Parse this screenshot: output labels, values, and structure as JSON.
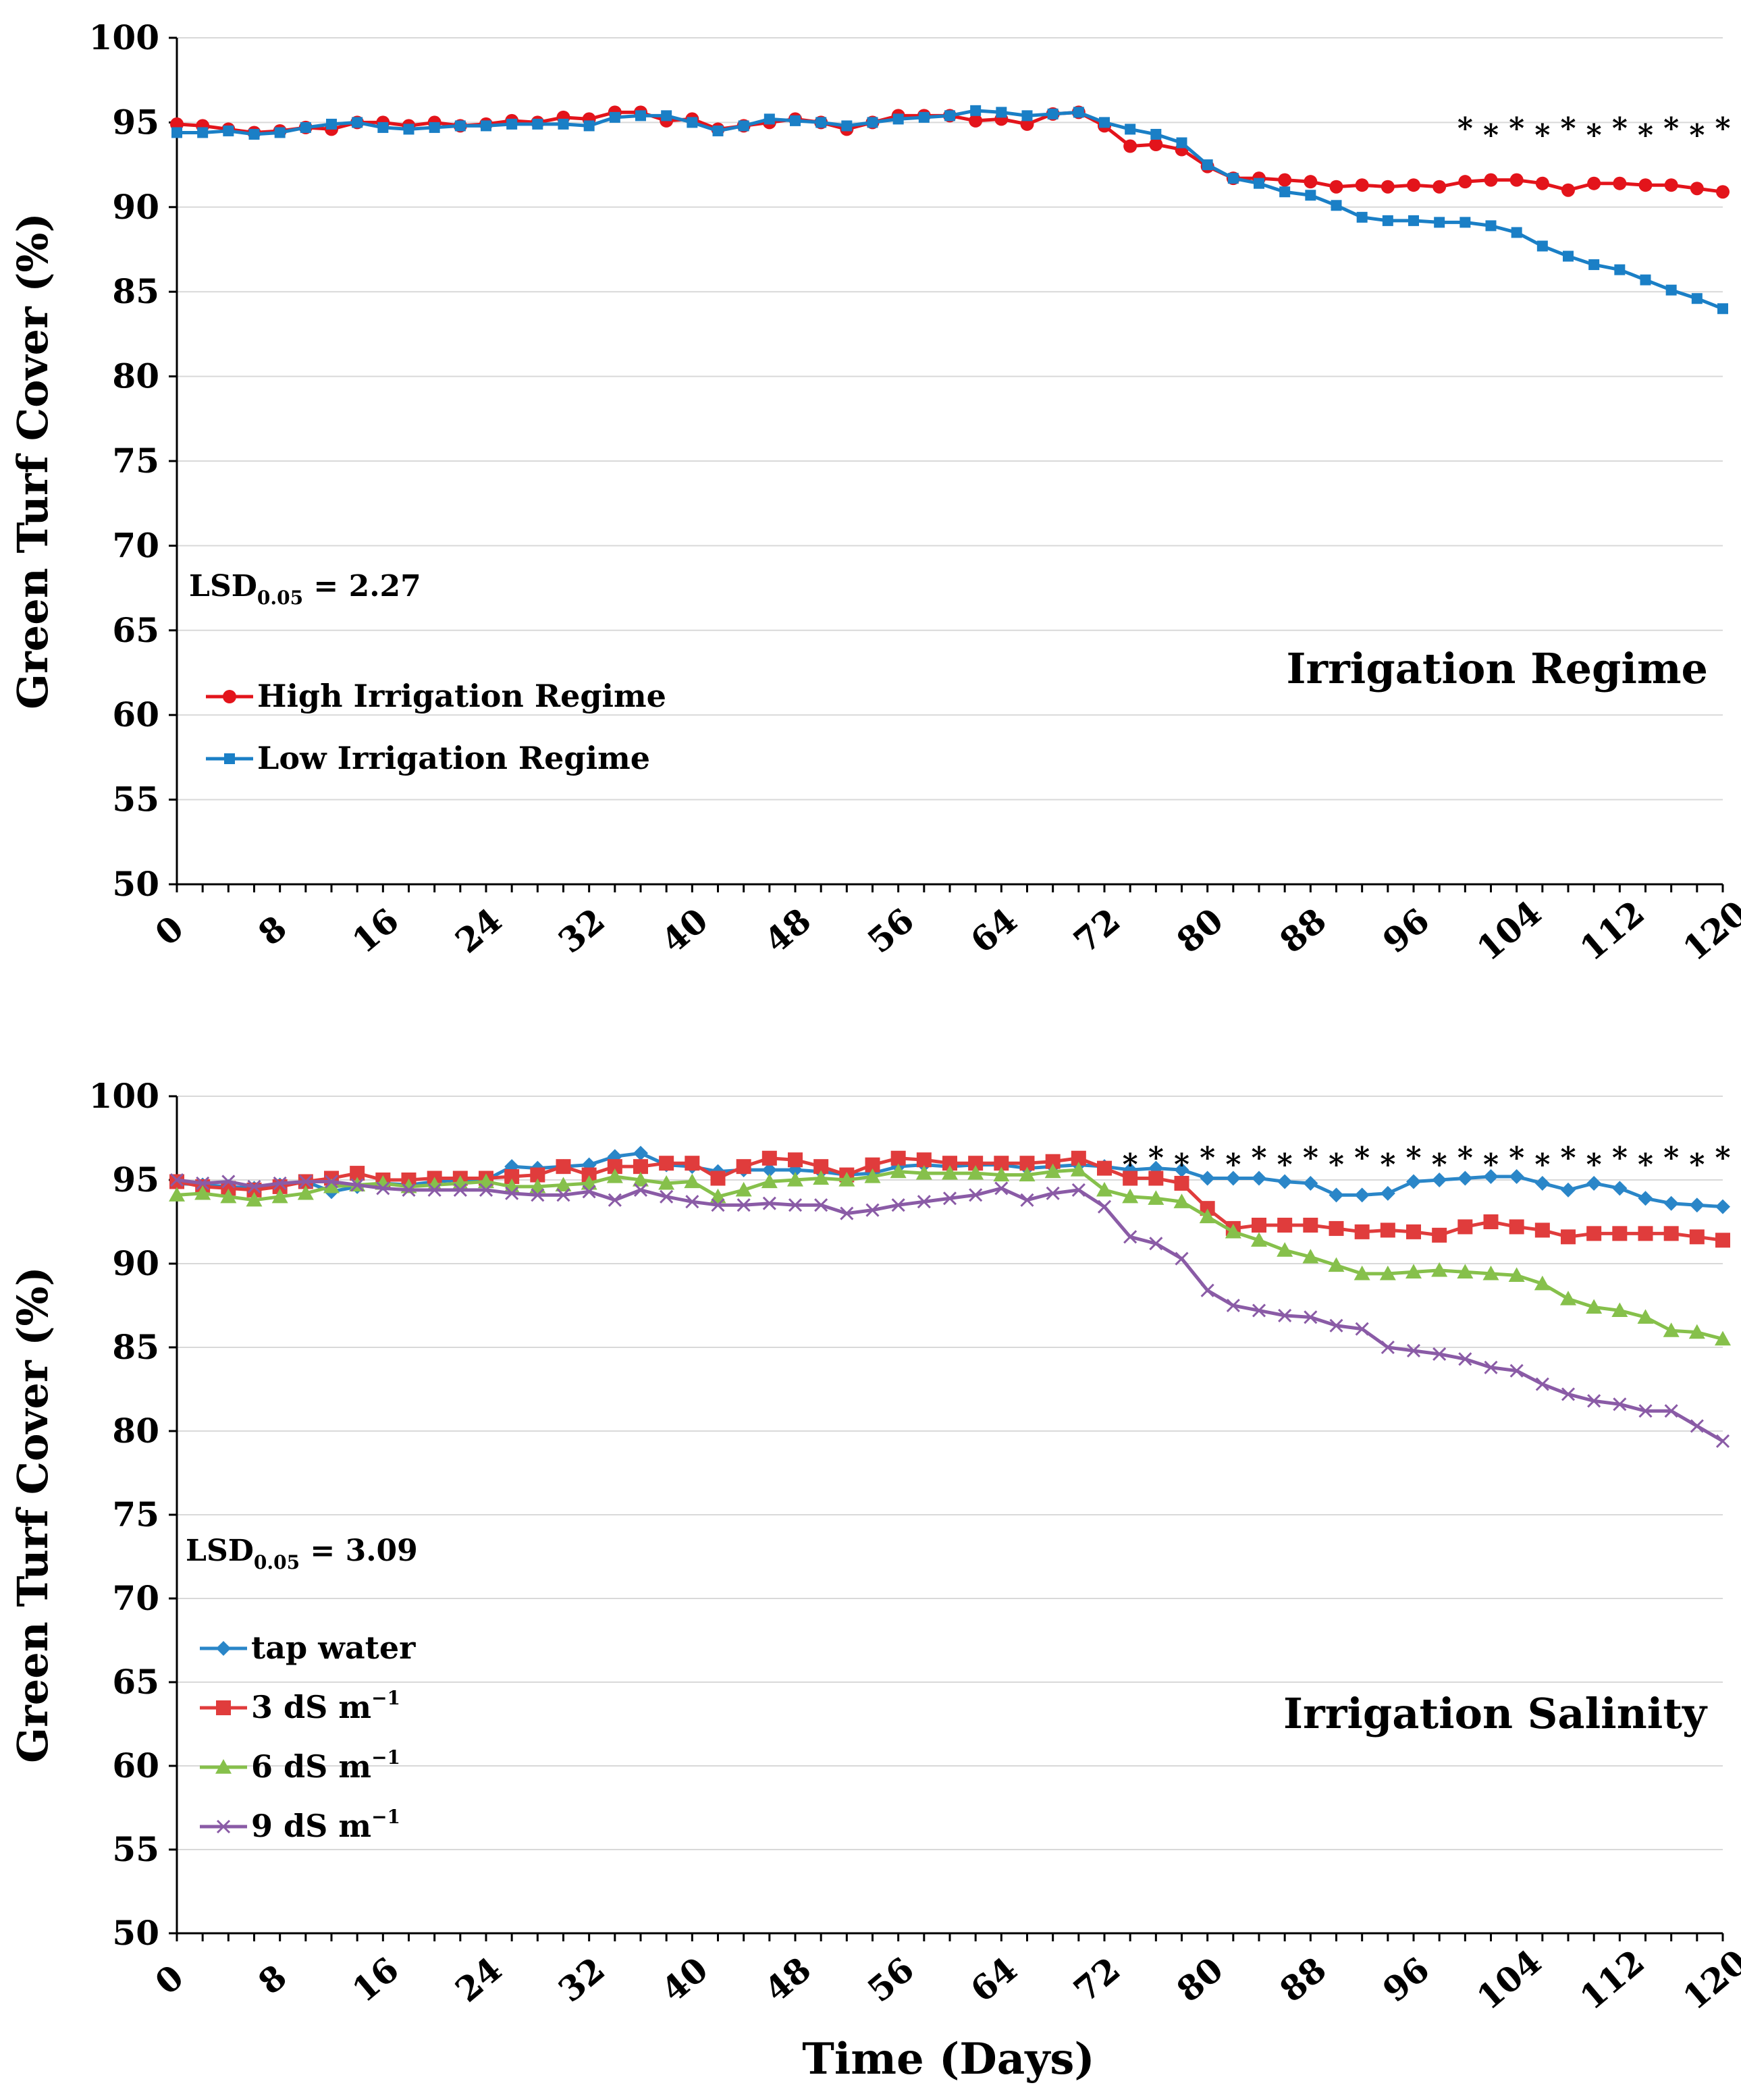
{
  "figure": {
    "xlabel": "Time (Days)"
  },
  "colors": {
    "high": "#e3141b",
    "low": "#1a7fc6",
    "tap": "#2a86c8",
    "s3": "#e03c3c",
    "s6": "#86c04b",
    "s9": "#8a5ba6",
    "grid": "#d9d9d9",
    "axis": "#000000"
  },
  "chart_data": [
    {
      "type": "line",
      "title": "Irrigation Regime",
      "ylabel": "Green Turf Cover (%)",
      "xlim": [
        0,
        120
      ],
      "ylim": [
        50,
        100
      ],
      "xticks": [
        0,
        8,
        16,
        24,
        32,
        40,
        48,
        56,
        64,
        72,
        80,
        88,
        96,
        104,
        112,
        120
      ],
      "yticks": [
        50,
        55,
        60,
        65,
        70,
        75,
        80,
        85,
        90,
        95,
        100
      ],
      "lsd": {
        "prefix": "LSD",
        "sub": "0.05",
        "value": " = 2.27"
      },
      "significance_from": 100,
      "series": [
        {
          "name": "High Irrigation Regime",
          "marker": "circle",
          "color_key": "high",
          "x": [
            0,
            2,
            4,
            6,
            8,
            10,
            12,
            14,
            16,
            18,
            20,
            22,
            24,
            26,
            28,
            30,
            32,
            34,
            36,
            38,
            40,
            42,
            44,
            46,
            48,
            50,
            52,
            54,
            56,
            58,
            60,
            62,
            64,
            66,
            68,
            70,
            72,
            74,
            76,
            78,
            80,
            82,
            84,
            86,
            88,
            90,
            92,
            94,
            96,
            98,
            100,
            102,
            104,
            106,
            108,
            110,
            112,
            114,
            116,
            118,
            120
          ],
          "values": [
            94.9,
            94.8,
            94.6,
            94.4,
            94.5,
            94.7,
            94.6,
            95.0,
            95.0,
            94.8,
            95.0,
            94.8,
            94.9,
            95.1,
            95.0,
            95.3,
            95.2,
            95.6,
            95.6,
            95.1,
            95.2,
            94.6,
            94.8,
            95.0,
            95.2,
            95.0,
            94.6,
            95.0,
            95.4,
            95.4,
            95.4,
            95.1,
            95.2,
            94.9,
            95.5,
            95.6,
            94.8,
            93.6,
            93.7,
            93.4,
            92.4,
            91.7,
            91.7,
            91.6,
            91.5,
            91.2,
            91.3,
            91.2,
            91.3,
            91.2,
            91.5,
            91.6,
            91.6,
            91.4,
            91.0,
            91.4,
            91.4,
            91.3,
            91.3,
            91.1,
            90.9
          ]
        },
        {
          "name": "Low Irrigation Regime",
          "marker": "square",
          "color_key": "low",
          "x": [
            0,
            2,
            4,
            6,
            8,
            10,
            12,
            14,
            16,
            18,
            20,
            22,
            24,
            26,
            28,
            30,
            32,
            34,
            36,
            38,
            40,
            42,
            44,
            46,
            48,
            50,
            52,
            54,
            56,
            58,
            60,
            62,
            64,
            66,
            68,
            70,
            72,
            74,
            76,
            78,
            80,
            82,
            84,
            86,
            88,
            90,
            92,
            94,
            96,
            98,
            100,
            102,
            104,
            106,
            108,
            110,
            112,
            114,
            116,
            118,
            120
          ],
          "values": [
            94.4,
            94.4,
            94.5,
            94.3,
            94.4,
            94.7,
            94.9,
            95.0,
            94.7,
            94.6,
            94.7,
            94.8,
            94.8,
            94.9,
            94.9,
            94.9,
            94.8,
            95.3,
            95.4,
            95.4,
            95.0,
            94.5,
            94.8,
            95.2,
            95.1,
            95.0,
            94.8,
            95.0,
            95.2,
            95.3,
            95.4,
            95.7,
            95.6,
            95.4,
            95.5,
            95.6,
            95.0,
            94.6,
            94.3,
            93.8,
            92.5,
            91.7,
            91.4,
            90.9,
            90.7,
            90.1,
            89.4,
            89.2,
            89.2,
            89.1,
            89.1,
            88.9,
            88.5,
            87.7,
            87.1,
            86.6,
            86.3,
            85.7,
            85.1,
            84.6,
            84.0
          ]
        }
      ]
    },
    {
      "type": "line",
      "title": "Irrigation Salinity",
      "ylabel": "Green Turf Cover (%)",
      "xlim": [
        0,
        120
      ],
      "ylim": [
        50,
        100
      ],
      "xticks": [
        0,
        8,
        16,
        24,
        32,
        40,
        48,
        56,
        64,
        72,
        80,
        88,
        96,
        104,
        112,
        120
      ],
      "yticks": [
        50,
        55,
        60,
        65,
        70,
        75,
        80,
        85,
        90,
        95,
        100
      ],
      "lsd": {
        "prefix": "LSD",
        "sub": "0.05",
        "value": " = 3.09"
      },
      "significance_from": 74,
      "series": [
        {
          "name": "tap water",
          "sup": "",
          "marker": "diamond",
          "color_key": "tap",
          "x": [
            0,
            2,
            4,
            6,
            8,
            10,
            12,
            14,
            16,
            18,
            20,
            22,
            24,
            26,
            28,
            30,
            32,
            34,
            36,
            38,
            40,
            42,
            44,
            46,
            48,
            50,
            52,
            54,
            56,
            58,
            60,
            62,
            64,
            66,
            68,
            70,
            72,
            74,
            76,
            78,
            80,
            82,
            84,
            86,
            88,
            90,
            92,
            94,
            96,
            98,
            100,
            102,
            104,
            106,
            108,
            110,
            112,
            114,
            116,
            118,
            120
          ],
          "values": [
            94.8,
            94.7,
            94.6,
            94.5,
            94.7,
            94.9,
            94.3,
            94.6,
            94.8,
            94.7,
            94.9,
            95.0,
            95.0,
            95.8,
            95.7,
            95.8,
            95.9,
            96.4,
            96.6,
            95.9,
            95.8,
            95.5,
            95.6,
            95.6,
            95.6,
            95.5,
            95.3,
            95.4,
            95.8,
            95.9,
            95.8,
            95.9,
            95.9,
            95.7,
            95.8,
            95.9,
            95.8,
            95.6,
            95.7,
            95.6,
            95.1,
            95.1,
            95.1,
            94.9,
            94.8,
            94.1,
            94.1,
            94.2,
            94.9,
            95.0,
            95.1,
            95.2,
            95.2,
            94.8,
            94.4,
            94.8,
            94.5,
            93.9,
            93.6,
            93.5,
            93.4
          ]
        },
        {
          "name": "3 dS m",
          "sup": "−1",
          "marker": "square",
          "color_key": "s3",
          "x": [
            0,
            2,
            4,
            6,
            8,
            10,
            12,
            14,
            16,
            18,
            20,
            22,
            24,
            26,
            28,
            30,
            32,
            34,
            36,
            38,
            40,
            42,
            44,
            46,
            48,
            50,
            52,
            54,
            56,
            58,
            60,
            62,
            64,
            66,
            68,
            70,
            72,
            74,
            76,
            78,
            80,
            82,
            84,
            86,
            88,
            90,
            92,
            94,
            96,
            98,
            100,
            102,
            104,
            106,
            108,
            110,
            112,
            114,
            116,
            118,
            120
          ],
          "values": [
            94.9,
            94.6,
            94.5,
            94.4,
            94.6,
            94.9,
            95.1,
            95.4,
            95.0,
            95.0,
            95.1,
            95.1,
            95.1,
            95.2,
            95.3,
            95.8,
            95.3,
            95.8,
            95.8,
            96.0,
            96.0,
            95.1,
            95.8,
            96.3,
            96.2,
            95.8,
            95.3,
            95.9,
            96.3,
            96.2,
            96.0,
            96.0,
            96.0,
            96.0,
            96.1,
            96.3,
            95.7,
            95.1,
            95.1,
            94.8,
            93.3,
            92.1,
            92.3,
            92.3,
            92.3,
            92.1,
            91.9,
            92.0,
            91.9,
            91.7,
            92.2,
            92.5,
            92.2,
            92.0,
            91.6,
            91.8,
            91.8,
            91.8,
            91.8,
            91.6,
            91.4
          ]
        },
        {
          "name": "6 dS m",
          "sup": "−1",
          "marker": "triangle",
          "color_key": "s6",
          "x": [
            0,
            2,
            4,
            6,
            8,
            10,
            12,
            14,
            16,
            18,
            20,
            22,
            24,
            26,
            28,
            30,
            32,
            34,
            36,
            38,
            40,
            42,
            44,
            46,
            48,
            50,
            52,
            54,
            56,
            58,
            60,
            62,
            64,
            66,
            68,
            70,
            72,
            74,
            76,
            78,
            80,
            82,
            84,
            86,
            88,
            90,
            92,
            94,
            96,
            98,
            100,
            102,
            104,
            106,
            108,
            110,
            112,
            114,
            116,
            118,
            120
          ],
          "values": [
            94.1,
            94.2,
            94.0,
            93.8,
            94.0,
            94.2,
            94.6,
            94.7,
            94.8,
            94.6,
            94.7,
            94.8,
            94.9,
            94.6,
            94.6,
            94.7,
            94.8,
            95.2,
            95.0,
            94.8,
            94.9,
            94.0,
            94.4,
            94.9,
            95.0,
            95.1,
            95.0,
            95.2,
            95.5,
            95.4,
            95.4,
            95.4,
            95.3,
            95.3,
            95.5,
            95.6,
            94.4,
            94.0,
            93.9,
            93.7,
            92.8,
            91.9,
            91.4,
            90.8,
            90.4,
            89.9,
            89.4,
            89.4,
            89.5,
            89.6,
            89.5,
            89.4,
            89.3,
            88.8,
            87.9,
            87.4,
            87.2,
            86.8,
            86.0,
            85.9,
            85.5
          ]
        },
        {
          "name": "9 dS m",
          "sup": "−1",
          "marker": "x",
          "color_key": "s9",
          "x": [
            0,
            2,
            4,
            6,
            8,
            10,
            12,
            14,
            16,
            18,
            20,
            22,
            24,
            26,
            28,
            30,
            32,
            34,
            36,
            38,
            40,
            42,
            44,
            46,
            48,
            50,
            52,
            54,
            56,
            58,
            60,
            62,
            64,
            66,
            68,
            70,
            72,
            74,
            76,
            78,
            80,
            82,
            84,
            86,
            88,
            90,
            92,
            94,
            96,
            98,
            100,
            102,
            104,
            106,
            108,
            110,
            112,
            114,
            116,
            118,
            120
          ],
          "values": [
            95.0,
            94.8,
            94.9,
            94.6,
            94.8,
            94.9,
            94.9,
            94.7,
            94.5,
            94.4,
            94.4,
            94.4,
            94.4,
            94.2,
            94.1,
            94.1,
            94.3,
            93.8,
            94.4,
            94.0,
            93.7,
            93.5,
            93.5,
            93.6,
            93.5,
            93.5,
            93.0,
            93.2,
            93.5,
            93.7,
            93.9,
            94.1,
            94.5,
            93.8,
            94.2,
            94.4,
            93.4,
            91.6,
            91.2,
            90.3,
            88.4,
            87.5,
            87.2,
            86.9,
            86.8,
            86.3,
            86.1,
            85.0,
            84.8,
            84.6,
            84.3,
            83.8,
            83.6,
            82.8,
            82.2,
            81.8,
            81.6,
            81.2,
            81.2,
            80.3,
            79.4
          ]
        }
      ]
    }
  ]
}
